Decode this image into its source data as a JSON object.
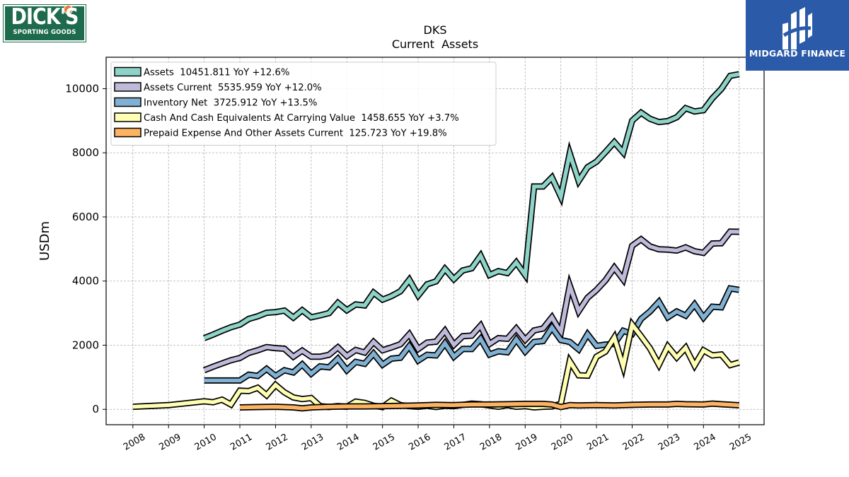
{
  "brand": {
    "left_logo_line1": "DICK'S",
    "left_logo_line2": "SPORTING GOODS",
    "left_logo_color": "#1e6a4c",
    "right_logo_name": "MIDGARD FINANCE",
    "right_logo_color": "#2b5aa8"
  },
  "chart_data": {
    "type": "line",
    "title": "DKS",
    "subtitle": "Current  Assets",
    "ylabel": "USDm",
    "xlabel": "",
    "xlim": [
      2007.25,
      2025.7
    ],
    "ylim": [
      -480,
      10980
    ],
    "xticks": [
      2008,
      2009,
      2010,
      2011,
      2012,
      2013,
      2014,
      2015,
      2016,
      2017,
      2018,
      2019,
      2020,
      2021,
      2022,
      2023,
      2024,
      2025
    ],
    "yticks": [
      0,
      2000,
      4000,
      6000,
      8000,
      10000
    ],
    "grid": true,
    "legend_position": "top-left",
    "series": [
      {
        "name": "Assets",
        "legend": "Assets  10451.811 YoY +12.6%",
        "color": "#8dd3c7",
        "x": [
          2010.0,
          2010.25,
          2010.5,
          2010.75,
          2011.0,
          2011.25,
          2011.5,
          2011.75,
          2012.0,
          2012.25,
          2012.5,
          2012.75,
          2013.0,
          2013.25,
          2013.5,
          2013.75,
          2014.0,
          2014.25,
          2014.5,
          2014.75,
          2015.0,
          2015.25,
          2015.5,
          2015.75,
          2016.0,
          2016.25,
          2016.5,
          2016.75,
          2017.0,
          2017.25,
          2017.5,
          2017.75,
          2018.0,
          2018.25,
          2018.5,
          2018.75,
          2019.0,
          2019.25,
          2019.5,
          2019.75,
          2020.0,
          2020.25,
          2020.5,
          2020.75,
          2021.0,
          2021.25,
          2021.5,
          2021.75,
          2022.0,
          2022.25,
          2022.5,
          2022.75,
          2023.0,
          2023.25,
          2023.5,
          2023.75,
          2024.0,
          2024.25,
          2024.5,
          2024.75,
          2025.0
        ],
        "values": [
          2220,
          2330,
          2450,
          2560,
          2640,
          2820,
          2900,
          3010,
          3030,
          3080,
          2860,
          3090,
          2870,
          2930,
          3000,
          3320,
          3090,
          3270,
          3240,
          3640,
          3420,
          3530,
          3680,
          4040,
          3550,
          3900,
          3990,
          4380,
          4060,
          4330,
          4400,
          4790,
          4190,
          4310,
          4250,
          4580,
          4190,
          6950,
          6950,
          7230,
          6630,
          7980,
          7120,
          7550,
          7720,
          8020,
          8330,
          8010,
          9000,
          9250,
          9060,
          8960,
          8990,
          9110,
          9390,
          9290,
          9330,
          9700,
          9990,
          10400,
          10451.811
        ]
      },
      {
        "name": "Assets Current",
        "legend": "Assets Current  5535.959 YoY +12.0%",
        "color": "#bebada",
        "x": [
          2010.0,
          2010.25,
          2010.5,
          2010.75,
          2011.0,
          2011.25,
          2011.5,
          2011.75,
          2012.0,
          2012.25,
          2012.5,
          2012.75,
          2013.0,
          2013.25,
          2013.5,
          2013.75,
          2014.0,
          2014.25,
          2014.5,
          2014.75,
          2015.0,
          2015.25,
          2015.5,
          2015.75,
          2016.0,
          2016.25,
          2016.5,
          2016.75,
          2017.0,
          2017.25,
          2017.5,
          2017.75,
          2018.0,
          2018.25,
          2018.5,
          2018.75,
          2019.0,
          2019.25,
          2019.5,
          2019.75,
          2020.0,
          2020.25,
          2020.5,
          2020.75,
          2021.0,
          2021.25,
          2021.5,
          2021.75,
          2022.0,
          2022.25,
          2022.5,
          2022.75,
          2023.0,
          2023.25,
          2023.5,
          2023.75,
          2024.0,
          2024.25,
          2024.5,
          2024.75,
          2025.0
        ],
        "values": [
          1220,
          1330,
          1430,
          1530,
          1600,
          1760,
          1840,
          1940,
          1910,
          1890,
          1640,
          1830,
          1640,
          1640,
          1700,
          1930,
          1660,
          1850,
          1770,
          2100,
          1840,
          1930,
          2030,
          2340,
          1880,
          2080,
          2110,
          2450,
          2010,
          2280,
          2300,
          2610,
          2040,
          2220,
          2200,
          2520,
          2170,
          2460,
          2520,
          2870,
          2400,
          3860,
          3060,
          3480,
          3720,
          4020,
          4420,
          4050,
          5100,
          5300,
          5080,
          4990,
          4980,
          4950,
          5050,
          4930,
          4880,
          5170,
          5180,
          5540,
          5535.959
        ]
      },
      {
        "name": "Inventory Net",
        "legend": "Inventory Net  3725.912 YoY +13.5%",
        "color": "#80b1d3",
        "x": [
          2010.0,
          2010.25,
          2010.5,
          2010.75,
          2011.0,
          2011.25,
          2011.5,
          2011.75,
          2012.0,
          2012.25,
          2012.5,
          2012.75,
          2013.0,
          2013.25,
          2013.5,
          2013.75,
          2014.0,
          2014.25,
          2014.5,
          2014.75,
          2015.0,
          2015.25,
          2015.5,
          2015.75,
          2016.0,
          2016.25,
          2016.5,
          2016.75,
          2017.0,
          2017.25,
          2017.5,
          2017.75,
          2018.0,
          2018.25,
          2018.5,
          2018.75,
          2019.0,
          2019.25,
          2019.5,
          2019.75,
          2020.0,
          2020.25,
          2020.5,
          2020.75,
          2021.0,
          2021.25,
          2021.5,
          2021.75,
          2022.0,
          2022.25,
          2022.5,
          2022.75,
          2023.0,
          2023.25,
          2023.5,
          2023.75,
          2024.0,
          2024.25,
          2024.5,
          2024.75,
          2025.0
        ],
        "values": [
          900,
          900,
          900,
          900,
          900,
          1080,
          1040,
          1260,
          1040,
          1220,
          1150,
          1400,
          1110,
          1340,
          1310,
          1580,
          1220,
          1480,
          1420,
          1740,
          1390,
          1580,
          1610,
          1970,
          1520,
          1700,
          1680,
          2060,
          1640,
          1880,
          1880,
          2200,
          1710,
          1810,
          1780,
          2180,
          1800,
          2100,
          2130,
          2550,
          2160,
          2100,
          1870,
          2340,
          1980,
          2020,
          2040,
          2450,
          2350,
          2820,
          3050,
          3350,
          2870,
          3050,
          2920,
          3270,
          2860,
          3200,
          3180,
          3770,
          3725.912
        ]
      },
      {
        "name": "Cash And Cash Equivalents At Carrying Value",
        "legend": "Cash And Cash Equivalents At Carrying Value  1458.655 YoY +3.7%",
        "color": "#ffffb3",
        "x": [
          2008.0,
          2009.0,
          2010.0,
          2010.25,
          2010.5,
          2010.75,
          2011.0,
          2011.25,
          2011.5,
          2011.75,
          2012.0,
          2012.25,
          2012.5,
          2012.75,
          2013.0,
          2013.25,
          2013.5,
          2013.75,
          2014.0,
          2014.25,
          2014.5,
          2014.75,
          2015.0,
          2015.25,
          2015.5,
          2015.75,
          2016.0,
          2016.25,
          2016.5,
          2016.75,
          2017.0,
          2017.25,
          2017.5,
          2017.75,
          2018.0,
          2018.25,
          2018.5,
          2018.75,
          2019.0,
          2019.25,
          2019.5,
          2019.75,
          2020.0,
          2020.25,
          2020.5,
          2020.75,
          2021.0,
          2021.25,
          2021.5,
          2021.75,
          2022.0,
          2022.25,
          2022.5,
          2022.75,
          2023.0,
          2023.25,
          2023.5,
          2023.75,
          2024.0,
          2024.25,
          2024.5,
          2024.75,
          2025.0
        ],
        "values": [
          80,
          130,
          250,
          220,
          300,
          150,
          580,
          570,
          670,
          440,
          760,
          530,
          370,
          320,
          350,
          100,
          70,
          100,
          80,
          240,
          200,
          110,
          70,
          270,
          130,
          100,
          80,
          110,
          70,
          110,
          100,
          140,
          180,
          160,
          120,
          80,
          130,
          80,
          100,
          60,
          80,
          90,
          170,
          1500,
          1060,
          1050,
          1640,
          1800,
          2240,
          1340,
          2640,
          2280,
          1900,
          1390,
          1960,
          1620,
          1920,
          1370,
          1840,
          1680,
          1710,
          1380,
          1458.655
        ]
      },
      {
        "name": "Prepaid Expense And Other Assets Current",
        "legend": "Prepaid Expense And Other Assets Current  125.723 YoY +19.8%",
        "color": "#fdb462",
        "x": [
          2011.0,
          2011.5,
          2012.0,
          2012.5,
          2012.75,
          2013.0,
          2013.5,
          2014.0,
          2014.5,
          2015.0,
          2015.5,
          2016.0,
          2016.5,
          2017.0,
          2017.5,
          2018.0,
          2018.5,
          2019.0,
          2019.5,
          2019.75,
          2020.0,
          2020.25,
          2020.5,
          2021.0,
          2021.5,
          2022.0,
          2022.5,
          2023.0,
          2023.25,
          2023.5,
          2024.0,
          2024.25,
          2024.5,
          2025.0
        ],
        "values": [
          60,
          70,
          80,
          60,
          30,
          60,
          80,
          90,
          90,
          100,
          110,
          120,
          140,
          130,
          150,
          150,
          160,
          170,
          170,
          150,
          70,
          130,
          120,
          130,
          120,
          140,
          150,
          150,
          170,
          160,
          150,
          180,
          160,
          125.723
        ]
      }
    ]
  }
}
